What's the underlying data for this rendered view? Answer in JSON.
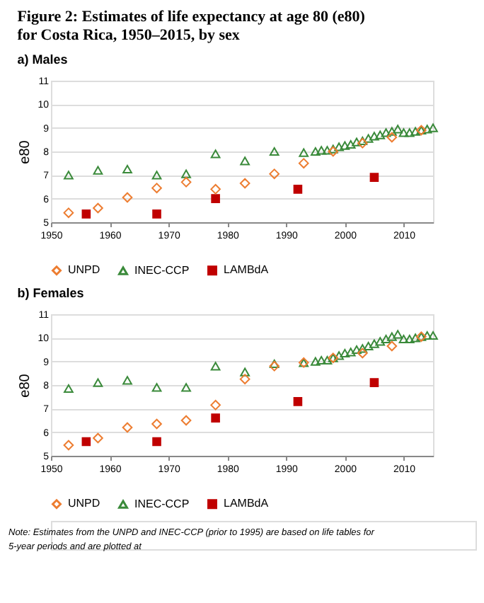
{
  "chart_data": [
    {
      "type": "scatter",
      "title": "Figure 2: Estimates of life expectancy at age 80 (e80) for Costa Rica, 1950–2015, by sex",
      "subtitle": "a) Males",
      "ylabel": "e80",
      "xlim": [
        1950,
        2015
      ],
      "xticks": [
        1950,
        1960,
        1970,
        1980,
        1990,
        2000,
        2010
      ],
      "ylim": [
        5,
        11
      ],
      "yticks": [
        5,
        6,
        7,
        8,
        9,
        10,
        11
      ],
      "grid": "y",
      "legend": "bottom",
      "series": [
        {
          "name": "UNPD",
          "color": "#ed7d31",
          "marker": "diamond",
          "x": [
            1953,
            1958,
            1963,
            1968,
            1973,
            1978,
            1983,
            1988,
            1993,
            1998,
            2003,
            2008,
            2013
          ],
          "values": [
            5.4,
            5.6,
            6.05,
            6.45,
            6.7,
            6.4,
            6.65,
            7.05,
            7.5,
            8.0,
            8.35,
            8.6,
            8.9
          ]
        },
        {
          "name": "INEC-CCP",
          "color": "#3a8a3a",
          "marker": "triangle",
          "x": [
            1953,
            1958,
            1963,
            1968,
            1973,
            1978,
            1983,
            1988,
            1993,
            1995,
            1996,
            1997,
            1998,
            1999,
            2000,
            2001,
            2002,
            2003,
            2004,
            2005,
            2006,
            2007,
            2008,
            2009,
            2010,
            2011,
            2012,
            2013,
            2014,
            2015
          ],
          "values": [
            7.0,
            7.2,
            7.25,
            7.0,
            7.05,
            7.9,
            7.6,
            8.0,
            7.95,
            8.0,
            8.05,
            8.05,
            8.1,
            8.2,
            8.25,
            8.3,
            8.4,
            8.45,
            8.55,
            8.65,
            8.7,
            8.8,
            8.85,
            8.95,
            8.8,
            8.8,
            8.85,
            8.9,
            8.95,
            9.0
          ]
        },
        {
          "name": "LAMBdA",
          "color": "#c00000",
          "marker": "square",
          "x": [
            1956,
            1968,
            1978,
            1992,
            2005
          ],
          "values": [
            5.35,
            5.35,
            6.0,
            6.4,
            6.9
          ]
        }
      ]
    },
    {
      "type": "scatter",
      "title": "b) Females",
      "ylabel": "e80",
      "xlim": [
        1950,
        2015
      ],
      "xticks": [
        1950,
        1960,
        1970,
        1980,
        1990,
        2000,
        2010
      ],
      "ylim": [
        5,
        11
      ],
      "yticks": [
        5,
        6,
        7,
        8,
        9,
        10,
        11
      ],
      "grid": "y",
      "legend": "bottom",
      "annotations": [
        "Note: Estimates from the UNPD and INEC-CCP (prior to 1995) are based on life tables for 5-year periods and are plotted at"
      ],
      "series": [
        {
          "name": "UNPD",
          "color": "#ed7d31",
          "marker": "diamond",
          "x": [
            1953,
            1958,
            1963,
            1968,
            1973,
            1978,
            1983,
            1988,
            1993,
            1998,
            2003,
            2008,
            2013
          ],
          "values": [
            5.45,
            5.75,
            6.2,
            6.35,
            6.5,
            7.15,
            8.25,
            8.8,
            8.95,
            9.15,
            9.35,
            9.65,
            10.05
          ]
        },
        {
          "name": "INEC-CCP",
          "color": "#3a8a3a",
          "marker": "triangle",
          "x": [
            1953,
            1958,
            1963,
            1968,
            1973,
            1978,
            1983,
            1988,
            1993,
            1995,
            1996,
            1997,
            1998,
            1999,
            2000,
            2001,
            2002,
            2003,
            2004,
            2005,
            2006,
            2007,
            2008,
            2009,
            2010,
            2011,
            2012,
            2013,
            2014,
            2015
          ],
          "values": [
            7.85,
            8.1,
            8.2,
            7.9,
            7.9,
            8.8,
            8.55,
            8.9,
            8.95,
            9.0,
            9.05,
            9.05,
            9.15,
            9.25,
            9.35,
            9.4,
            9.5,
            9.55,
            9.65,
            9.75,
            9.85,
            9.95,
            10.05,
            10.15,
            9.95,
            9.95,
            10.0,
            10.05,
            10.1,
            10.1
          ]
        },
        {
          "name": "LAMBdA",
          "color": "#c00000",
          "marker": "square",
          "x": [
            1956,
            1968,
            1978,
            1992,
            2005
          ],
          "values": [
            5.6,
            5.6,
            6.6,
            7.3,
            8.1
          ]
        }
      ]
    }
  ]
}
